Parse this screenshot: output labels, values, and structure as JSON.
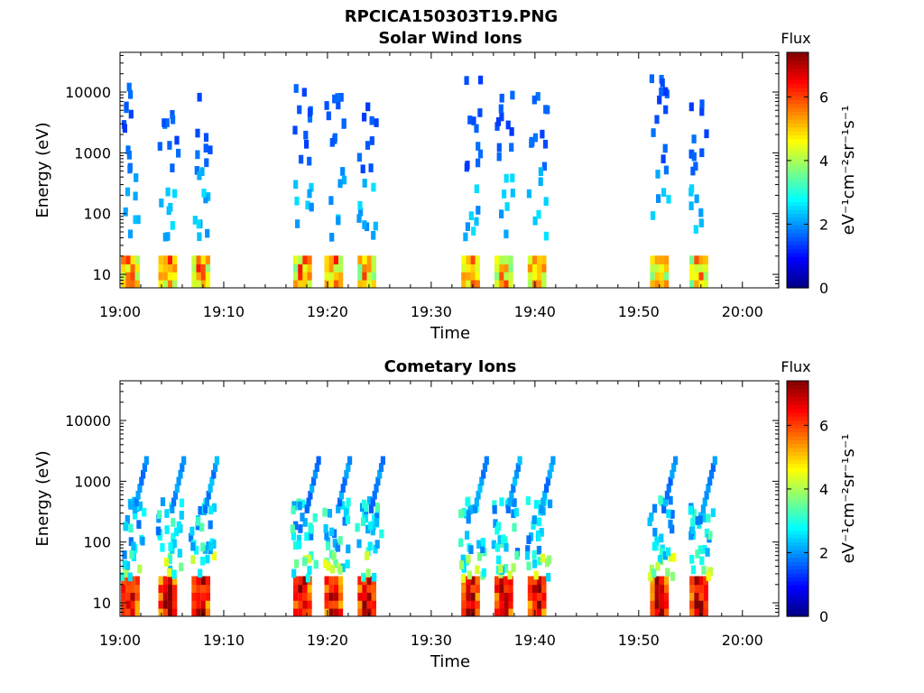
{
  "figure": {
    "title": "RPCICA150303T19.PNG"
  },
  "chart_data": [
    {
      "type": "heatmap",
      "title": "Solar Wind Ions",
      "xlabel": "Time",
      "ylabel": "Energy (eV)",
      "y_scale": "log",
      "x_ticks": [
        "19:00",
        "19:10",
        "19:20",
        "19:30",
        "19:40",
        "19:50",
        "20:00"
      ],
      "x_tick_minutes": [
        0,
        10,
        20,
        30,
        40,
        50,
        60
      ],
      "xlim_minutes": [
        0,
        63.5
      ],
      "y_ticks": [
        "10",
        "100",
        "1000",
        "10000"
      ],
      "y_tick_values": [
        10,
        100,
        1000,
        10000
      ],
      "ylim": [
        6,
        45000
      ],
      "colorbar": {
        "title": "Flux",
        "label": "eV⁻¹cm⁻²sr⁻¹s⁻¹",
        "ticks": [
          "0",
          "2",
          "4",
          "6"
        ],
        "tick_values": [
          0,
          2,
          4,
          6
        ],
        "range": [
          0,
          7.4
        ],
        "colormap": "jet"
      },
      "bursts_start_minutes": [
        0.0,
        3.6,
        6.8,
        16.6,
        19.6,
        22.8,
        32.8,
        36.0,
        39.2,
        51.0,
        54.8
      ],
      "low_energy_band": {
        "energy_range_eV": [
          7,
          23
        ],
        "flux_range": [
          4.0,
          6.4
        ]
      },
      "high_energy_points": {
        "energy_range_eV": [
          40,
          22000
        ],
        "flux_range": [
          1.4,
          2.6
        ]
      }
    },
    {
      "type": "heatmap",
      "title": "Cometary Ions",
      "xlabel": "Time",
      "ylabel": "Energy (eV)",
      "y_scale": "log",
      "x_ticks": [
        "19:00",
        "19:10",
        "19:20",
        "19:30",
        "19:40",
        "19:50",
        "20:00"
      ],
      "x_tick_minutes": [
        0,
        10,
        20,
        30,
        40,
        50,
        60
      ],
      "xlim_minutes": [
        0,
        63.5
      ],
      "y_ticks": [
        "10",
        "100",
        "1000",
        "10000"
      ],
      "y_tick_values": [
        10,
        100,
        1000,
        10000
      ],
      "ylim": [
        6,
        45000
      ],
      "colorbar": {
        "title": "Flux",
        "label": "eV⁻¹cm⁻²sr⁻¹s⁻¹",
        "ticks": [
          "0",
          "2",
          "4",
          "6"
        ],
        "tick_values": [
          0,
          2,
          4,
          6
        ],
        "range": [
          0,
          7.4
        ],
        "colormap": "jet"
      },
      "bursts_start_minutes": [
        0.0,
        3.6,
        6.8,
        16.6,
        19.6,
        22.8,
        32.8,
        36.0,
        39.2,
        51.0,
        54.8
      ],
      "low_energy_band": {
        "energy_range_eV": [
          7,
          25
        ],
        "flux_range": [
          5.5,
          7.2
        ]
      },
      "mid_energy_band": {
        "energy_range_eV": [
          25,
          600
        ],
        "flux_range": [
          2.0,
          4.0
        ]
      },
      "upper_tail": {
        "energy_range_eV": [
          400,
          3000
        ],
        "flux_range": [
          1.6,
          2.4
        ]
      }
    }
  ]
}
